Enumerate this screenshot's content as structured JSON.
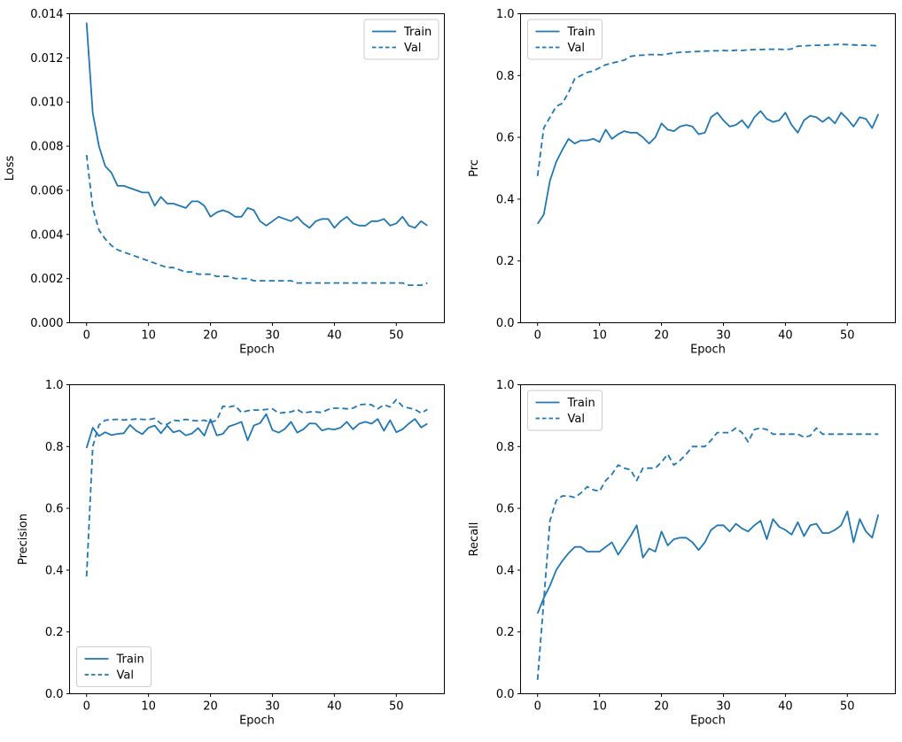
{
  "figure": {
    "background": "#ffffff",
    "line_color": "#1f77b4",
    "text_color": "#000000",
    "legend_border_color": "#cccccc"
  },
  "epochs": [
    0,
    1,
    2,
    3,
    4,
    5,
    6,
    7,
    8,
    9,
    10,
    11,
    12,
    13,
    14,
    15,
    16,
    17,
    18,
    19,
    20,
    21,
    22,
    23,
    24,
    25,
    26,
    27,
    28,
    29,
    30,
    31,
    32,
    33,
    34,
    35,
    36,
    37,
    38,
    39,
    40,
    41,
    42,
    43,
    44,
    45,
    46,
    47,
    48,
    49,
    50,
    51,
    52,
    53,
    54,
    55
  ],
  "chart_data": [
    {
      "id": "loss",
      "type": "line",
      "title": "",
      "xlabel": "Epoch",
      "ylabel": "Loss",
      "xlim": [
        -2.75,
        57.75
      ],
      "ylim": [
        0,
        0.014
      ],
      "grid": false,
      "xticks": [
        0,
        10,
        20,
        30,
        40,
        50
      ],
      "xtick_labels": [
        "0",
        "10",
        "20",
        "30",
        "40",
        "50"
      ],
      "yticks": [
        0,
        0.002,
        0.004,
        0.006,
        0.008,
        0.01,
        0.012,
        0.014
      ],
      "ytick_labels": [
        "0.000",
        "0.002",
        "0.004",
        "0.006",
        "0.008",
        "0.010",
        "0.012",
        "0.014"
      ],
      "legend_position": "upper-right",
      "series": [
        {
          "name": "Train",
          "style": "solid",
          "values": [
            0.0136,
            0.0095,
            0.008,
            0.0071,
            0.0068,
            0.0062,
            0.0062,
            0.0061,
            0.006,
            0.0059,
            0.0059,
            0.0053,
            0.0057,
            0.0054,
            0.0054,
            0.0053,
            0.0052,
            0.0055,
            0.0055,
            0.0053,
            0.0048,
            0.005,
            0.0051,
            0.005,
            0.0048,
            0.0048,
            0.0052,
            0.0051,
            0.0046,
            0.0044,
            0.0046,
            0.0048,
            0.0047,
            0.0046,
            0.0048,
            0.0045,
            0.0043,
            0.0046,
            0.0047,
            0.0047,
            0.0043,
            0.0046,
            0.0048,
            0.0045,
            0.0044,
            0.0044,
            0.0046,
            0.0046,
            0.0047,
            0.0044,
            0.0045,
            0.0048,
            0.0044,
            0.0043,
            0.0046,
            0.0044
          ]
        },
        {
          "name": "Val",
          "style": "dashed",
          "values": [
            0.0076,
            0.0052,
            0.0042,
            0.0038,
            0.0035,
            0.0033,
            0.0032,
            0.0031,
            0.003,
            0.0029,
            0.0028,
            0.0027,
            0.0026,
            0.0025,
            0.0025,
            0.0024,
            0.0023,
            0.0023,
            0.0022,
            0.0022,
            0.0022,
            0.0021,
            0.0021,
            0.0021,
            0.002,
            0.002,
            0.002,
            0.0019,
            0.0019,
            0.0019,
            0.0019,
            0.0019,
            0.0019,
            0.0019,
            0.0018,
            0.0018,
            0.0018,
            0.0018,
            0.0018,
            0.0018,
            0.0018,
            0.0018,
            0.0018,
            0.0018,
            0.0018,
            0.0018,
            0.0018,
            0.0018,
            0.0018,
            0.0018,
            0.0018,
            0.0018,
            0.0017,
            0.0017,
            0.0017,
            0.0018
          ]
        }
      ]
    },
    {
      "id": "prc",
      "type": "line",
      "title": "",
      "xlabel": "Epoch",
      "ylabel": "Prc",
      "xlim": [
        -2.75,
        57.75
      ],
      "ylim": [
        0,
        1.0
      ],
      "grid": false,
      "xticks": [
        0,
        10,
        20,
        30,
        40,
        50
      ],
      "xtick_labels": [
        "0",
        "10",
        "20",
        "30",
        "40",
        "50"
      ],
      "yticks": [
        0,
        0.2,
        0.4,
        0.6,
        0.8,
        1.0
      ],
      "ytick_labels": [
        "0.0",
        "0.2",
        "0.4",
        "0.6",
        "0.8",
        "1.0"
      ],
      "legend_position": "upper-left",
      "series": [
        {
          "name": "Train",
          "style": "solid",
          "values": [
            0.32,
            0.35,
            0.46,
            0.52,
            0.56,
            0.595,
            0.58,
            0.59,
            0.59,
            0.595,
            0.585,
            0.625,
            0.595,
            0.61,
            0.62,
            0.615,
            0.615,
            0.6,
            0.58,
            0.6,
            0.645,
            0.625,
            0.62,
            0.635,
            0.64,
            0.635,
            0.61,
            0.615,
            0.665,
            0.68,
            0.655,
            0.635,
            0.64,
            0.655,
            0.63,
            0.665,
            0.685,
            0.66,
            0.65,
            0.655,
            0.68,
            0.64,
            0.615,
            0.655,
            0.67,
            0.665,
            0.65,
            0.665,
            0.645,
            0.68,
            0.66,
            0.635,
            0.665,
            0.66,
            0.63,
            0.675
          ]
        },
        {
          "name": "Val",
          "style": "dashed",
          "values": [
            0.475,
            0.63,
            0.665,
            0.7,
            0.71,
            0.745,
            0.79,
            0.8,
            0.81,
            0.815,
            0.825,
            0.835,
            0.84,
            0.845,
            0.85,
            0.862,
            0.865,
            0.866,
            0.868,
            0.868,
            0.867,
            0.87,
            0.873,
            0.875,
            0.876,
            0.877,
            0.878,
            0.879,
            0.88,
            0.88,
            0.881,
            0.88,
            0.882,
            0.881,
            0.883,
            0.884,
            0.884,
            0.885,
            0.885,
            0.885,
            0.884,
            0.886,
            0.895,
            0.896,
            0.897,
            0.898,
            0.898,
            0.899,
            0.9,
            0.901,
            0.9,
            0.899,
            0.898,
            0.898,
            0.897,
            0.896
          ]
        }
      ]
    },
    {
      "id": "precision",
      "type": "line",
      "title": "",
      "xlabel": "Epoch",
      "ylabel": "Precision",
      "xlim": [
        -2.75,
        57.75
      ],
      "ylim": [
        0,
        1.0
      ],
      "grid": false,
      "xticks": [
        0,
        10,
        20,
        30,
        40,
        50
      ],
      "xtick_labels": [
        "0",
        "10",
        "20",
        "30",
        "40",
        "50"
      ],
      "yticks": [
        0,
        0.2,
        0.4,
        0.6,
        0.8,
        1.0
      ],
      "ytick_labels": [
        "0.0",
        "0.2",
        "0.4",
        "0.6",
        "0.8",
        "1.0"
      ],
      "legend_position": "lower-left",
      "series": [
        {
          "name": "Train",
          "style": "solid",
          "values": [
            0.795,
            0.861,
            0.834,
            0.846,
            0.837,
            0.841,
            0.843,
            0.87,
            0.851,
            0.84,
            0.861,
            0.868,
            0.843,
            0.868,
            0.846,
            0.852,
            0.836,
            0.842,
            0.86,
            0.835,
            0.888,
            0.836,
            0.841,
            0.865,
            0.872,
            0.88,
            0.82,
            0.868,
            0.876,
            0.905,
            0.853,
            0.845,
            0.857,
            0.88,
            0.845,
            0.856,
            0.875,
            0.874,
            0.852,
            0.858,
            0.855,
            0.861,
            0.88,
            0.856,
            0.874,
            0.88,
            0.874,
            0.889,
            0.851,
            0.885,
            0.846,
            0.856,
            0.874,
            0.889,
            0.862,
            0.874
          ]
        },
        {
          "name": "Val",
          "style": "dashed",
          "values": [
            0.38,
            0.8,
            0.87,
            0.885,
            0.887,
            0.888,
            0.886,
            0.887,
            0.889,
            0.888,
            0.887,
            0.891,
            0.874,
            0.872,
            0.885,
            0.883,
            0.888,
            0.884,
            0.883,
            0.885,
            0.878,
            0.885,
            0.93,
            0.928,
            0.932,
            0.91,
            0.916,
            0.918,
            0.918,
            0.92,
            0.922,
            0.908,
            0.91,
            0.912,
            0.92,
            0.908,
            0.912,
            0.912,
            0.91,
            0.92,
            0.924,
            0.924,
            0.922,
            0.924,
            0.935,
            0.937,
            0.935,
            0.922,
            0.935,
            0.928,
            0.952,
            0.93,
            0.925,
            0.92,
            0.908,
            0.92
          ]
        }
      ]
    },
    {
      "id": "recall",
      "type": "line",
      "title": "",
      "xlabel": "Epoch",
      "ylabel": "Recall",
      "xlim": [
        -2.75,
        57.75
      ],
      "ylim": [
        0,
        1.0
      ],
      "grid": false,
      "xticks": [
        0,
        10,
        20,
        30,
        40,
        50
      ],
      "xtick_labels": [
        "0",
        "10",
        "20",
        "30",
        "40",
        "50"
      ],
      "yticks": [
        0,
        0.2,
        0.4,
        0.6,
        0.8,
        1.0
      ],
      "ytick_labels": [
        "0.0",
        "0.2",
        "0.4",
        "0.6",
        "0.8",
        "1.0"
      ],
      "legend_position": "upper-left",
      "series": [
        {
          "name": "Train",
          "style": "solid",
          "values": [
            0.26,
            0.31,
            0.35,
            0.4,
            0.43,
            0.455,
            0.475,
            0.475,
            0.46,
            0.46,
            0.46,
            0.475,
            0.49,
            0.45,
            0.48,
            0.51,
            0.545,
            0.44,
            0.47,
            0.46,
            0.525,
            0.48,
            0.5,
            0.505,
            0.505,
            0.49,
            0.465,
            0.49,
            0.53,
            0.545,
            0.545,
            0.525,
            0.55,
            0.535,
            0.525,
            0.545,
            0.56,
            0.5,
            0.565,
            0.54,
            0.53,
            0.515,
            0.555,
            0.51,
            0.545,
            0.55,
            0.52,
            0.52,
            0.53,
            0.545,
            0.59,
            0.49,
            0.565,
            0.525,
            0.505,
            0.58
          ]
        },
        {
          "name": "Val",
          "style": "dashed",
          "values": [
            0.045,
            0.3,
            0.56,
            0.625,
            0.64,
            0.64,
            0.635,
            0.65,
            0.67,
            0.66,
            0.655,
            0.69,
            0.71,
            0.74,
            0.73,
            0.725,
            0.69,
            0.73,
            0.73,
            0.73,
            0.75,
            0.775,
            0.74,
            0.755,
            0.775,
            0.8,
            0.8,
            0.8,
            0.82,
            0.845,
            0.845,
            0.845,
            0.86,
            0.845,
            0.815,
            0.855,
            0.86,
            0.855,
            0.84,
            0.84,
            0.84,
            0.84,
            0.84,
            0.83,
            0.835,
            0.86,
            0.84,
            0.84,
            0.84,
            0.84,
            0.84,
            0.84,
            0.84,
            0.84,
            0.84,
            0.84
          ]
        }
      ]
    }
  ]
}
